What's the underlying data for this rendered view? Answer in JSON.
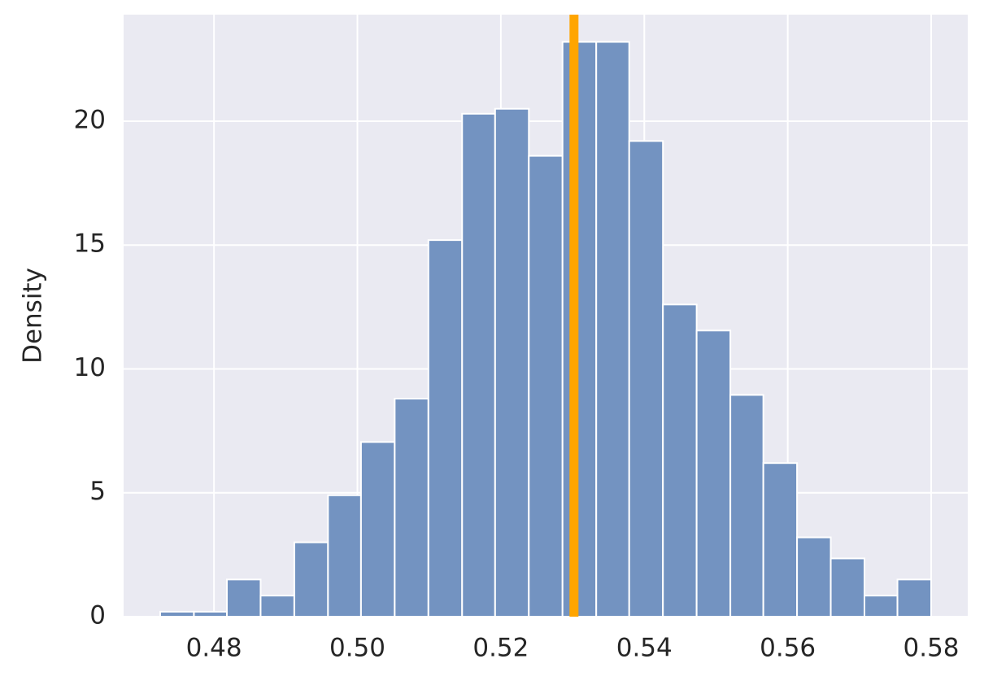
{
  "chart_data": {
    "type": "histogram",
    "ylabel": "Density",
    "bins": [
      0.4725,
      0.4772,
      0.4818,
      0.4865,
      0.4912,
      0.4959,
      0.5005,
      0.5052,
      0.5099,
      0.5146,
      0.5192,
      0.5239,
      0.5286,
      0.5333,
      0.5379,
      0.5426,
      0.5473,
      0.552,
      0.5566,
      0.5613,
      0.566,
      0.5707,
      0.5753,
      0.58
    ],
    "values": [
      0.2,
      0.2,
      1.5,
      0.85,
      3.0,
      4.9,
      7.05,
      8.8,
      15.2,
      20.3,
      20.5,
      18.6,
      23.2,
      23.2,
      19.2,
      12.6,
      11.55,
      8.95,
      6.2,
      3.2,
      2.35,
      0.85,
      1.5
    ],
    "color": "#7393c1",
    "vline": 0.5302,
    "vline_color": "#ffa500",
    "xlim": [
      0.4674,
      0.5851
    ],
    "ylim": [
      0,
      24.3
    ],
    "xticks": [
      0.48,
      {
        "value": 0.5,
        "label": "0.50"
      },
      0.52,
      0.54,
      0.56,
      0.58
    ],
    "yticks": [
      0,
      5,
      10,
      15,
      20
    ],
    "grid": true
  }
}
